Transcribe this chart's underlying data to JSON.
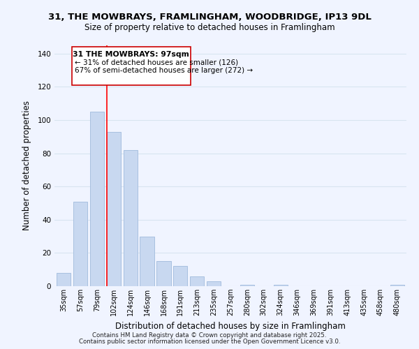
{
  "title": "31, THE MOWBRAYS, FRAMLINGHAM, WOODBRIDGE, IP13 9DL",
  "subtitle": "Size of property relative to detached houses in Framlingham",
  "xlabel": "Distribution of detached houses by size in Framlingham",
  "ylabel": "Number of detached properties",
  "bar_color": "#c8d8f0",
  "bar_edge_color": "#a8c0e0",
  "categories": [
    "35sqm",
    "57sqm",
    "79sqm",
    "102sqm",
    "124sqm",
    "146sqm",
    "168sqm",
    "191sqm",
    "213sqm",
    "235sqm",
    "257sqm",
    "280sqm",
    "302sqm",
    "324sqm",
    "346sqm",
    "369sqm",
    "391sqm",
    "413sqm",
    "435sqm",
    "458sqm",
    "480sqm"
  ],
  "values": [
    8,
    51,
    105,
    93,
    82,
    30,
    15,
    12,
    6,
    3,
    0,
    1,
    0,
    1,
    0,
    0,
    0,
    0,
    0,
    0,
    1
  ],
  "redline_index": 3,
  "annotation_title": "31 THE MOWBRAYS: 97sqm",
  "annotation_line1": "← 31% of detached houses are smaller (126)",
  "annotation_line2": "67% of semi-detached houses are larger (272) →",
  "ylim": [
    0,
    145
  ],
  "yticks": [
    0,
    20,
    40,
    60,
    80,
    100,
    120,
    140
  ],
  "footer1": "Contains HM Land Registry data © Crown copyright and database right 2025.",
  "footer2": "Contains public sector information licensed under the Open Government Licence v3.0.",
  "background_color": "#f0f4ff",
  "grid_color": "#d8e4f0"
}
